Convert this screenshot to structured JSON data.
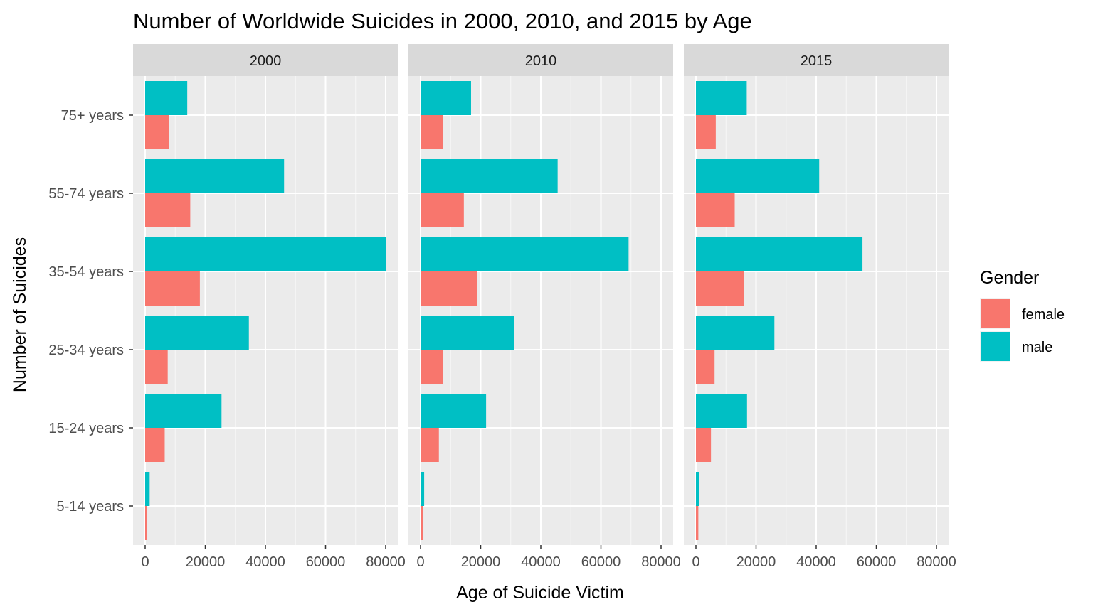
{
  "chart_data": {
    "type": "bar",
    "orientation": "horizontal",
    "title": "Number of Worldwide Suicides in 2000, 2010, and 2015 by Age",
    "xlabel": "Age of Suicide Victim",
    "ylabel": "Number of Suicides",
    "xlim": [
      0,
      80000
    ],
    "x_ticks": [
      0,
      20000,
      40000,
      60000,
      80000
    ],
    "x_tick_labels": [
      "0",
      "20000",
      "40000",
      "60000",
      "80000"
    ],
    "categories": [
      "5-14 years",
      "15-24 years",
      "25-34 years",
      "35-54 years",
      "55-74 years",
      "75+ years"
    ],
    "grid": true,
    "legend": {
      "title": "Gender",
      "position": "right",
      "entries": [
        {
          "name": "female",
          "color": "#F8766D"
        },
        {
          "name": "male",
          "color": "#00BFC4"
        }
      ]
    },
    "panels": [
      {
        "label": "2000",
        "series": [
          {
            "name": "female",
            "values": [
              500,
              6500,
              7500,
              18200,
              15000,
              8000
            ]
          },
          {
            "name": "male",
            "values": [
              1500,
              25400,
              34500,
              80000,
              46200,
              14000
            ]
          }
        ]
      },
      {
        "label": "2010",
        "series": [
          {
            "name": "female",
            "values": [
              800,
              6100,
              7400,
              18800,
              14400,
              7500
            ]
          },
          {
            "name": "male",
            "values": [
              1200,
              21800,
              31200,
              69200,
              45600,
              16800
            ]
          }
        ]
      },
      {
        "label": "2015",
        "series": [
          {
            "name": "female",
            "values": [
              800,
              5000,
              6200,
              16000,
              12900,
              6600
            ]
          },
          {
            "name": "male",
            "values": [
              1100,
              17000,
              26100,
              55400,
              41000,
              16900
            ]
          }
        ]
      }
    ]
  }
}
